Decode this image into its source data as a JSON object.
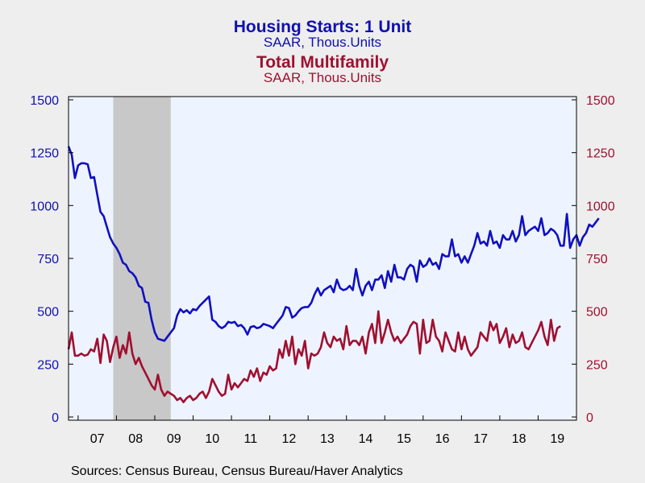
{
  "chart_data": {
    "type": "line",
    "titles": [
      {
        "text": "Housing Starts: 1 Unit",
        "color": "#1010b0",
        "style": "title"
      },
      {
        "text": "SAAR, Thous.Units",
        "color": "#1010b0",
        "style": "subtitle"
      },
      {
        "text": "Total Multifamily",
        "color": "#a01030",
        "style": "title"
      },
      {
        "text": "SAAR, Thous.Units",
        "color": "#a01030",
        "style": "subtitle"
      }
    ],
    "source": "Sources:  Census Bureau, Census Bureau/Haver Analytics",
    "x_range": [
      2006.75,
      2020.0
    ],
    "x_ticks": [
      {
        "label": "07",
        "x": 2007
      },
      {
        "label": "08",
        "x": 2008
      },
      {
        "label": "09",
        "x": 2009
      },
      {
        "label": "10",
        "x": 2010
      },
      {
        "label": "11",
        "x": 2011
      },
      {
        "label": "12",
        "x": 2012
      },
      {
        "label": "13",
        "x": 2013
      },
      {
        "label": "14",
        "x": 2014
      },
      {
        "label": "15",
        "x": 2015
      },
      {
        "label": "16",
        "x": 2016
      },
      {
        "label": "17",
        "x": 2017
      },
      {
        "label": "18",
        "x": 2018
      },
      {
        "label": "19",
        "x": 2019
      }
    ],
    "y_left": {
      "range": [
        0,
        1500
      ],
      "ticks": [
        "0",
        "250",
        "500",
        "750",
        "1000",
        "1250",
        "1500"
      ],
      "color": "#1010b0"
    },
    "y_right": {
      "range": [
        0,
        1500
      ],
      "ticks": [
        "0",
        "250",
        "500",
        "750",
        "1000",
        "1250",
        "1500"
      ],
      "color": "#a01030"
    },
    "recession": {
      "start": 2007.917,
      "end": 2009.417,
      "color": "#c8c8c8"
    },
    "plot_background": "#eef4ff",
    "grid": false,
    "series": [
      {
        "name": "Housing Starts: 1 Unit",
        "axis": "left",
        "color": "#1010c0",
        "start": 2006.75,
        "step": 0.0833333,
        "values": [
          1280,
          1240,
          1130,
          1190,
          1200,
          1200,
          1195,
          1130,
          1135,
          1050,
          970,
          950,
          900,
          850,
          820,
          800,
          770,
          730,
          720,
          690,
          680,
          660,
          620,
          610,
          545,
          540,
          460,
          400,
          370,
          365,
          360,
          380,
          400,
          420,
          480,
          510,
          495,
          505,
          490,
          510,
          505,
          525,
          540,
          555,
          570,
          460,
          450,
          430,
          420,
          430,
          450,
          445,
          450,
          430,
          435,
          420,
          390,
          425,
          430,
          420,
          425,
          440,
          435,
          430,
          420,
          440,
          460,
          480,
          520,
          515,
          470,
          480,
          500,
          515,
          520,
          520,
          540,
          580,
          610,
          575,
          600,
          610,
          620,
          590,
          650,
          610,
          600,
          605,
          620,
          600,
          700,
          620,
          575,
          620,
          640,
          600,
          650,
          650,
          670,
          610,
          690,
          640,
          720,
          660,
          660,
          650,
          700,
          720,
          710,
          640,
          740,
          710,
          720,
          750,
          720,
          730,
          700,
          770,
          760,
          760,
          840,
          760,
          770,
          730,
          760,
          730,
          770,
          810,
          870,
          820,
          830,
          810,
          880,
          820,
          830,
          800,
          860,
          840,
          840,
          880,
          830,
          860,
          950,
          860,
          880,
          890,
          900,
          880,
          940,
          860,
          870,
          890,
          880,
          860,
          810,
          810,
          960,
          800,
          840,
          860,
          810,
          850,
          870,
          910,
          900,
          920,
          940
        ]
      },
      {
        "name": "Total Multifamily",
        "axis": "right",
        "color": "#a01030",
        "start": 2006.75,
        "step": 0.0833333,
        "values": [
          320,
          400,
          290,
          290,
          300,
          290,
          295,
          320,
          310,
          370,
          255,
          390,
          360,
          260,
          330,
          380,
          280,
          340,
          300,
          400,
          300,
          250,
          280,
          240,
          210,
          180,
          150,
          130,
          200,
          130,
          100,
          120,
          110,
          100,
          80,
          90,
          70,
          90,
          100,
          80,
          90,
          110,
          120,
          90,
          120,
          180,
          150,
          120,
          100,
          110,
          200,
          130,
          160,
          140,
          160,
          180,
          170,
          220,
          190,
          230,
          170,
          210,
          200,
          240,
          220,
          230,
          320,
          280,
          360,
          290,
          380,
          250,
          320,
          290,
          360,
          230,
          300,
          290,
          300,
          330,
          400,
          350,
          330,
          380,
          360,
          370,
          320,
          430,
          340,
          360,
          360,
          340,
          380,
          300,
          400,
          440,
          350,
          500,
          350,
          400,
          460,
          400,
          360,
          380,
          350,
          370,
          390,
          430,
          450,
          440,
          300,
          460,
          350,
          360,
          460,
          380,
          360,
          310,
          400,
          360,
          320,
          310,
          400,
          320,
          380,
          320,
          290,
          310,
          330,
          400,
          380,
          360,
          450,
          410,
          440,
          350,
          380,
          420,
          330,
          390,
          350,
          360,
          400,
          330,
          320,
          350,
          380,
          410,
          450,
          380,
          340,
          460,
          360,
          420,
          430
        ]
      }
    ]
  }
}
